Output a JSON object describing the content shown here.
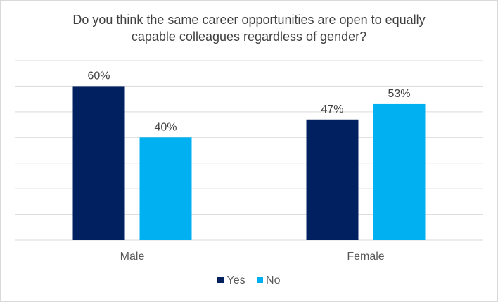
{
  "chart_data": {
    "type": "bar",
    "title": "Do you think the same career opportunities are open to equally capable colleagues regardless of gender?",
    "title_lines": [
      "Do you think the same career opportunities are open to equally",
      "capable colleagues regardless of gender?"
    ],
    "categories": [
      "Male",
      "Female"
    ],
    "series": [
      {
        "name": "Yes",
        "values": [
          60,
          47
        ],
        "labels": [
          "60%",
          "47%"
        ],
        "color": "#002060"
      },
      {
        "name": "No",
        "values": [
          40,
          53
        ],
        "labels": [
          "40%",
          "53%"
        ],
        "color": "#00B0F0"
      }
    ],
    "xlabel": "",
    "ylabel": "",
    "ylim": [
      0,
      70
    ],
    "grid_step": 10,
    "grid": true,
    "legend": "bottom"
  }
}
